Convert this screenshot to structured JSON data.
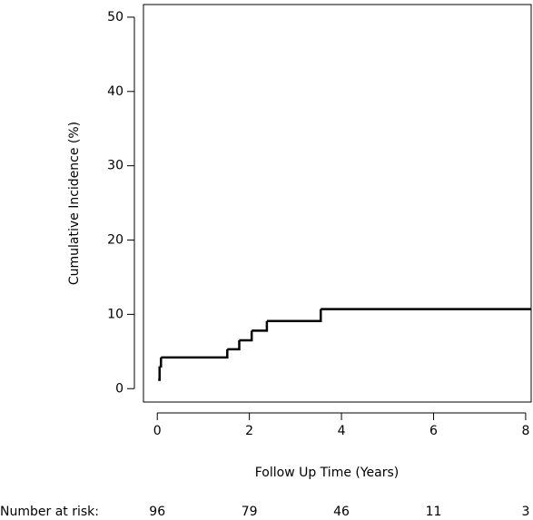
{
  "chart_data": {
    "type": "step",
    "ylabel": "Cumulative Incidence (%)",
    "xlabel": "Follow Up Time (Years)",
    "x": [
      0.02,
      0.05,
      0.08,
      1.52,
      1.78,
      2.05,
      2.38,
      3.55,
      8.12
    ],
    "values": [
      1.2,
      3.0,
      4.2,
      5.3,
      6.5,
      7.8,
      9.1,
      10.7,
      10.7
    ],
    "color": "#000000",
    "xlim": [
      -0.3,
      8.12
    ],
    "ylim": [
      -1.8,
      51.7
    ],
    "xticks": [
      0,
      2,
      4,
      6,
      8
    ],
    "yticks": [
      0,
      10,
      20,
      30,
      40,
      50
    ],
    "risk_label": "Number at risk:",
    "at_risk": [
      96,
      79,
      46,
      11,
      3
    ]
  }
}
